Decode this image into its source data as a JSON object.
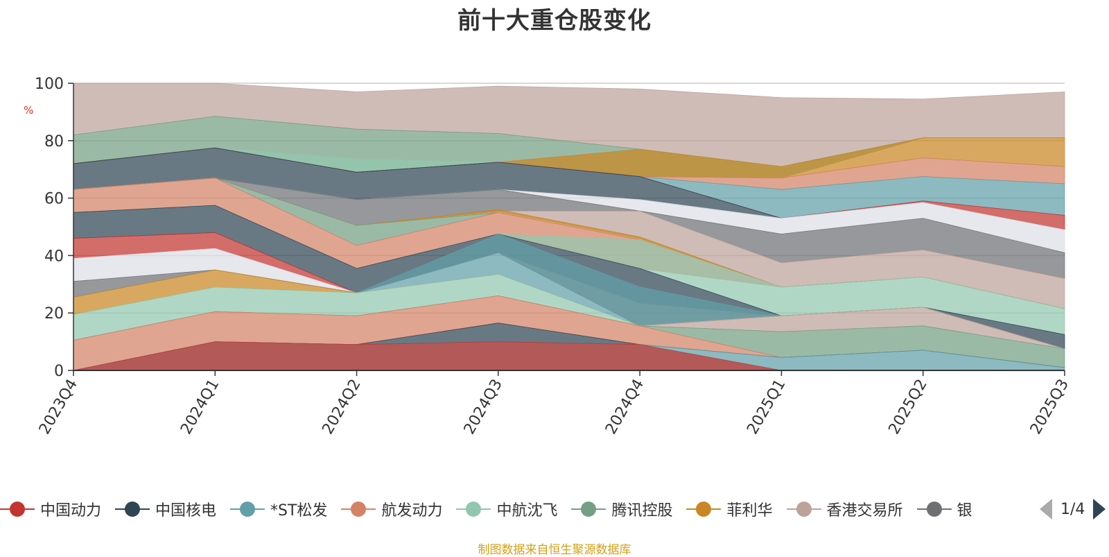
{
  "title": "前十大重仓股变化",
  "unit_label": "%",
  "source_note": "制图数据来自恒生聚源数据库",
  "legend": {
    "page": "1/4",
    "items": [
      {
        "name": "中国动力",
        "color": "#c23531"
      },
      {
        "name": "中国核电",
        "color": "#2f4554"
      },
      {
        "name": "*ST松发",
        "color": "#61a0a8"
      },
      {
        "name": "航发动力",
        "color": "#d48265"
      },
      {
        "name": "中航沈飞",
        "color": "#91c7ae"
      },
      {
        "name": "腾讯控股",
        "color": "#749f83"
      },
      {
        "name": "菲利华",
        "color": "#ca8622"
      },
      {
        "name": "香港交易所",
        "color": "#bda29a"
      },
      {
        "name": "银",
        "color": "#6e7074"
      }
    ]
  },
  "chart_data": {
    "type": "area",
    "stacked": false,
    "title": "前十大重仓股变化",
    "ylabel": "%",
    "ylim": [
      0,
      100
    ],
    "yticks": [
      0,
      20,
      40,
      60,
      80,
      100
    ],
    "grid": true,
    "categories": [
      "2023Q4",
      "2024Q1",
      "2024Q2",
      "2024Q3",
      "2024Q4",
      "2025Q1",
      "2025Q2",
      "2025Q3"
    ],
    "bands": [
      {
        "color": "#bda29a",
        "lower": [
          82,
          88.5,
          84,
          82.5,
          77,
          71,
          81,
          81
        ],
        "upper": [
          100,
          100,
          97,
          99,
          98,
          95,
          94.5,
          97
        ]
      },
      {
        "color": "#749f83",
        "lower": [
          72,
          77.5,
          69,
          72.5,
          67.5,
          67,
          81,
          81
        ],
        "upper": [
          82,
          88.5,
          84,
          82.5,
          77,
          71,
          81,
          81
        ]
      },
      {
        "color": "#91c7ae",
        "lower": [
          72,
          77.5,
          69,
          72.5,
          67.5,
          67,
          81,
          81
        ],
        "upper": [
          72,
          77.5,
          73.5,
          72.5,
          67.5,
          67,
          81,
          81
        ]
      },
      {
        "color": "#ca8622",
        "lower": [
          72,
          77.5,
          69,
          72.5,
          67.5,
          67,
          74,
          71
        ],
        "upper": [
          72,
          77.5,
          69,
          72.5,
          77,
          71,
          81,
          81
        ]
      },
      {
        "color": "#d48265",
        "lower": [
          72,
          77.5,
          69,
          72.5,
          67.5,
          63,
          67.5,
          65
        ],
        "upper": [
          72,
          77.5,
          69,
          72.5,
          67.5,
          67,
          74,
          71
        ]
      },
      {
        "color": "#61a0a8",
        "lower": [
          72,
          77.5,
          69,
          72.5,
          67.5,
          53,
          59,
          54
        ],
        "upper": [
          72,
          77.5,
          69,
          72.5,
          67.5,
          63,
          67.5,
          65
        ]
      },
      {
        "color": "#c23531",
        "lower": [
          72,
          77.5,
          69,
          72.5,
          67.5,
          53,
          58.5,
          49
        ],
        "upper": [
          72,
          77.5,
          69,
          72.5,
          67.5,
          53,
          59,
          54
        ]
      },
      {
        "color": "#2f4554",
        "lower": [
          63,
          67,
          59.5,
          63,
          59.5,
          53,
          58.5,
          49
        ],
        "upper": [
          72,
          77.5,
          69,
          72.5,
          67.5,
          53,
          58.5,
          49
        ]
      },
      {
        "color": "#dcdfe6",
        "lower": [
          63,
          67,
          59.5,
          63,
          55.5,
          47.5,
          53,
          41
        ],
        "upper": [
          63,
          67,
          59.5,
          63,
          59.5,
          53,
          58.5,
          49
        ]
      },
      {
        "color": "#6e7074",
        "lower": [
          63,
          67,
          50.5,
          55.5,
          55.5,
          37.5,
          42,
          32
        ],
        "upper": [
          63,
          67,
          59.5,
          63,
          55.5,
          47.5,
          53,
          41
        ]
      },
      {
        "color": "#bda29a",
        "lower": [
          63,
          67,
          50.5,
          55.5,
          46,
          29,
          32.5,
          21.5
        ],
        "upper": [
          63,
          67,
          50.5,
          55.5,
          55.5,
          37.5,
          42,
          32
        ]
      },
      {
        "color": "#ca8622",
        "lower": [
          63,
          67,
          50.5,
          55,
          45.5,
          29,
          32.5,
          21.5
        ],
        "upper": [
          63,
          67,
          50.5,
          56,
          46.5,
          29,
          32.5,
          21.5
        ]
      },
      {
        "color": "#749f83",
        "lower": [
          63,
          67,
          43.5,
          55,
          45.5,
          29,
          32.5,
          21.5
        ],
        "upper": [
          63,
          67,
          50.5,
          55,
          45.5,
          29,
          32.5,
          21.5
        ]
      },
      {
        "color": "#d48265",
        "lower": [
          55,
          57.5,
          35.5,
          47.5,
          35.5,
          29,
          32.5,
          21.5
        ],
        "upper": [
          63,
          67,
          43.5,
          55,
          45.5,
          29,
          32.5,
          21.5
        ]
      },
      {
        "color": "#91c7ae",
        "lower": [
          55,
          57.5,
          35.5,
          47.5,
          35.5,
          19,
          22,
          12.5
        ],
        "upper": [
          55,
          57.5,
          35.5,
          47.5,
          45.5,
          29,
          32.5,
          21.5
        ]
      },
      {
        "color": "#2f4554",
        "lower": [
          46,
          48,
          27,
          41,
          23.5,
          19,
          22,
          7.5
        ],
        "upper": [
          55,
          57.5,
          35.5,
          47.5,
          35.5,
          19,
          22,
          12.5
        ]
      },
      {
        "color": "#c23531",
        "lower": [
          39,
          42.5,
          27,
          41,
          23.5,
          19,
          22,
          7.5
        ],
        "upper": [
          46,
          48,
          27,
          41,
          23.5,
          19,
          22,
          7.5
        ]
      },
      {
        "color": "#dcdfe6",
        "lower": [
          31,
          35,
          27,
          41,
          23.5,
          19,
          22,
          7.5
        ],
        "upper": [
          39,
          42.5,
          27,
          41,
          23.5,
          19,
          22,
          7.5
        ]
      },
      {
        "color": "#6e7074",
        "lower": [
          25.5,
          35,
          27,
          41,
          15.5,
          19,
          22,
          7.5
        ],
        "upper": [
          31,
          35,
          27,
          41,
          23.5,
          19,
          22,
          7.5
        ]
      },
      {
        "color": "#61a0a8",
        "lower": [
          25.5,
          35,
          27,
          33.5,
          15.5,
          19,
          22,
          7.5
        ],
        "upper": [
          25.5,
          35,
          27,
          47.5,
          29,
          19,
          22,
          7.5
        ]
      },
      {
        "color": "#ca8622",
        "lower": [
          19.5,
          29,
          27,
          33.5,
          15.5,
          19,
          22,
          7.5
        ],
        "upper": [
          25.5,
          35,
          27,
          33.5,
          15.5,
          19,
          22,
          7.5
        ]
      },
      {
        "color": "#91c7ae",
        "lower": [
          10.5,
          20.5,
          19,
          26,
          15.5,
          19,
          22,
          7.5
        ],
        "upper": [
          19.5,
          29,
          27,
          33.5,
          15.5,
          19,
          22,
          7.5
        ]
      },
      {
        "color": "#bda29a",
        "lower": [
          10.5,
          20.5,
          19,
          26,
          15.5,
          13.5,
          15.5,
          7.5
        ],
        "upper": [
          10.5,
          20.5,
          19,
          26,
          15.5,
          19,
          22,
          7.5
        ]
      },
      {
        "color": "#749f83",
        "lower": [
          10.5,
          20.5,
          19,
          26,
          15.5,
          4.5,
          7,
          1
        ],
        "upper": [
          10.5,
          20.5,
          19,
          26,
          15.5,
          13.5,
          15.5,
          7.5
        ]
      },
      {
        "color": "#d48265",
        "lower": [
          0,
          10,
          9,
          16.5,
          9,
          4.5,
          7,
          1
        ],
        "upper": [
          10.5,
          20.5,
          19,
          26,
          15.5,
          4.5,
          7,
          1
        ]
      },
      {
        "color": "#2f4554",
        "lower": [
          0,
          10,
          9,
          10,
          9,
          4.5,
          7,
          1
        ],
        "upper": [
          0,
          10,
          9,
          16.5,
          9,
          4.5,
          7,
          1
        ]
      },
      {
        "color": "#61a0a8",
        "lower": [
          0,
          0,
          0,
          0,
          0,
          0,
          0,
          0
        ],
        "upper": [
          0,
          10,
          9,
          10,
          9,
          4.5,
          7,
          1
        ]
      },
      {
        "color": "#c23531",
        "lower": [
          0,
          0,
          0,
          0,
          0,
          0,
          0,
          0
        ],
        "upper": [
          0,
          10,
          9,
          10,
          9,
          0,
          0,
          0
        ]
      }
    ]
  }
}
